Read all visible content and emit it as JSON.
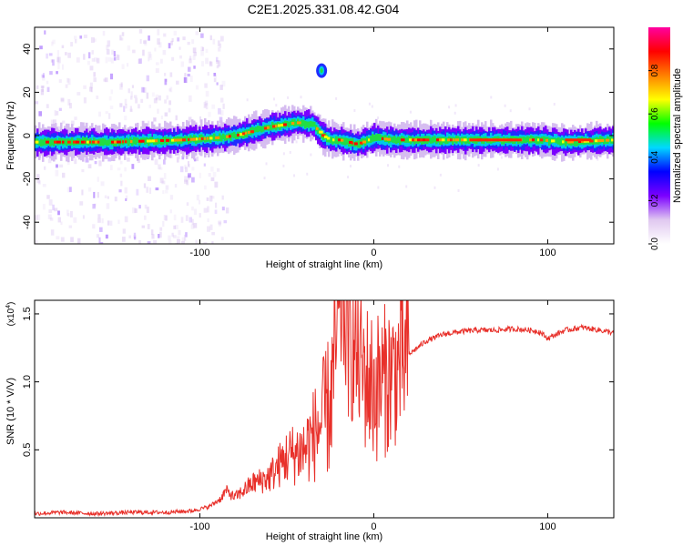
{
  "title": "C2E1.2025.331.08.42.G04",
  "chart_data": [
    {
      "type": "heatmap",
      "name": "spectrogram",
      "xlabel": "Height of straight line (km)",
      "ylabel": "Frequency (Hz)",
      "xlim": [
        -195,
        138
      ],
      "ylim": [
        -50,
        50
      ],
      "x_ticks": [
        -100,
        0,
        100
      ],
      "x_tick_labels": [
        "-100",
        "0",
        "100"
      ],
      "y_ticks": [
        -40,
        -20,
        0,
        20,
        40
      ],
      "y_tick_labels": [
        "-40",
        "-20",
        "0",
        "20",
        "40"
      ],
      "ridge": {
        "description": "dominant frequency track (strongest spectral amplitude)",
        "x": [
          -195,
          -150,
          -110,
          -90,
          -80,
          -60,
          -45,
          -35,
          -30,
          -25,
          -20,
          -10,
          0,
          10,
          30,
          60,
          80,
          95,
          110,
          138
        ],
        "y": [
          -3,
          -3,
          -2,
          -1,
          0,
          4,
          6,
          5,
          0,
          -2,
          -2,
          -4,
          -1,
          -2,
          -2,
          -2,
          -2,
          -2,
          -3,
          -2
        ]
      },
      "annotations": [
        {
          "x": -30,
          "y": 30,
          "label": "isolated high-frequency blob"
        }
      ],
      "colorbar": {
        "label": "Normalized spectral amplitude",
        "range": [
          0.0,
          1.0
        ],
        "ticks": [
          0.0,
          0.2,
          0.4,
          0.6,
          0.8
        ],
        "tick_labels": [
          "0.0",
          "0.2",
          "0.4",
          "0.6",
          "0.8"
        ],
        "colors": [
          "#ffffff",
          "#e0c8f0",
          "#7b00ff",
          "#0000ff",
          "#00d8ff",
          "#00ff00",
          "#ffff00",
          "#ff8000",
          "#ff0000",
          "#ff00a0"
        ]
      }
    },
    {
      "type": "line",
      "name": "snr",
      "xlabel": "Height of straight line (km)",
      "ylabel": "SNR (10 * V/V)",
      "multiplier_label": "(x10",
      "multiplier_exp": "4",
      "multiplier_close": ")",
      "xlim": [
        -195,
        138
      ],
      "ylim": [
        0,
        1.6
      ],
      "x_ticks": [
        -100,
        0,
        100
      ],
      "x_tick_labels": [
        "-100",
        "0",
        "100"
      ],
      "y_ticks": [
        0.5,
        1.0,
        1.5
      ],
      "y_tick_labels": [
        "0.5",
        "1.0",
        "1.5"
      ],
      "color": "#e8302a",
      "series": {
        "name": "SNR",
        "x": [
          -195,
          -180,
          -160,
          -140,
          -120,
          -105,
          -95,
          -88,
          -85,
          -80,
          -70,
          -60,
          -50,
          -40,
          -30,
          -25,
          -20,
          -18,
          -15,
          -10,
          -5,
          0,
          10,
          20,
          30,
          40,
          50,
          60,
          70,
          80,
          90,
          95,
          100,
          110,
          120,
          130,
          138
        ],
        "y": [
          0.03,
          0.04,
          0.03,
          0.04,
          0.04,
          0.05,
          0.08,
          0.14,
          0.2,
          0.15,
          0.25,
          0.3,
          0.45,
          0.5,
          0.7,
          0.85,
          1.45,
          1.6,
          1.3,
          1.2,
          1.05,
          0.95,
          1.05,
          1.2,
          1.3,
          1.35,
          1.37,
          1.38,
          1.38,
          1.39,
          1.38,
          1.37,
          1.32,
          1.38,
          1.4,
          1.38,
          1.36
        ]
      }
    }
  ]
}
